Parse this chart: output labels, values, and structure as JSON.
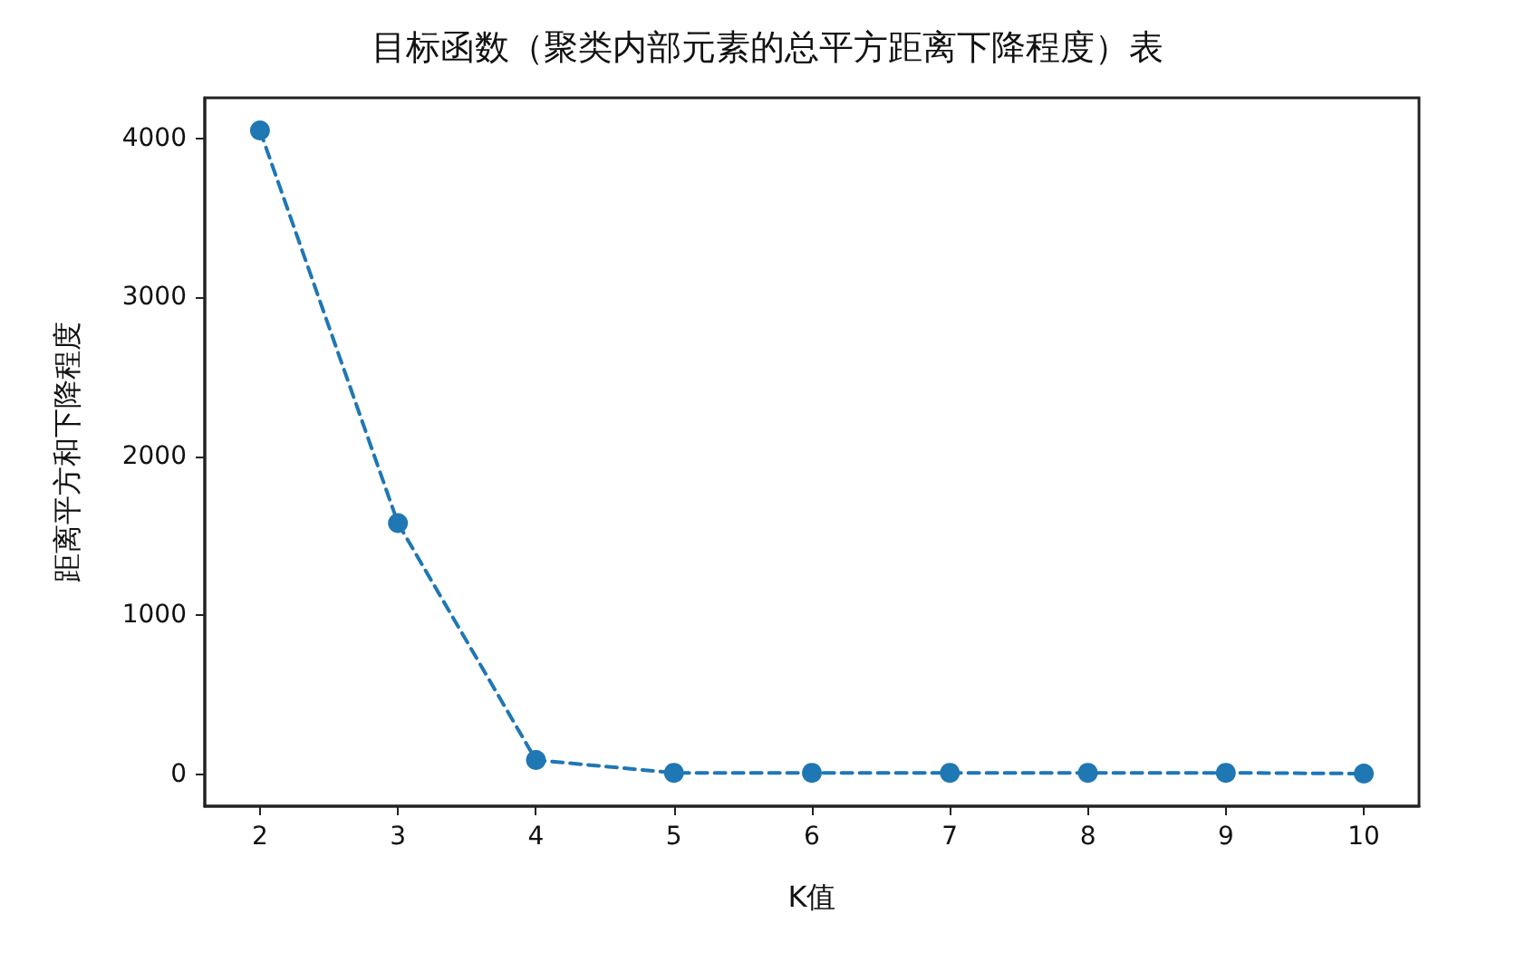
{
  "chart_data": {
    "type": "line",
    "title": "目标函数（聚类内部元素的总平方距离下降程度）表",
    "xlabel": "K值",
    "ylabel": "距离平方和下降程度",
    "x": [
      2,
      3,
      4,
      5,
      6,
      7,
      8,
      9,
      10
    ],
    "series": [
      {
        "color": "#1f77b4",
        "values": [
          4050,
          1580,
          90,
          10,
          10,
          10,
          10,
          10,
          5
        ]
      }
    ],
    "xlim": [
      1.6,
      10.4
    ],
    "xticks": [
      2,
      3,
      4,
      5,
      6,
      7,
      8,
      9,
      10
    ],
    "ylim": [
      -200,
      4255
    ],
    "yticks": [
      0,
      1000,
      2000,
      3000,
      4000
    ],
    "grid": false,
    "marker": "circle",
    "line_style": "dashed"
  }
}
